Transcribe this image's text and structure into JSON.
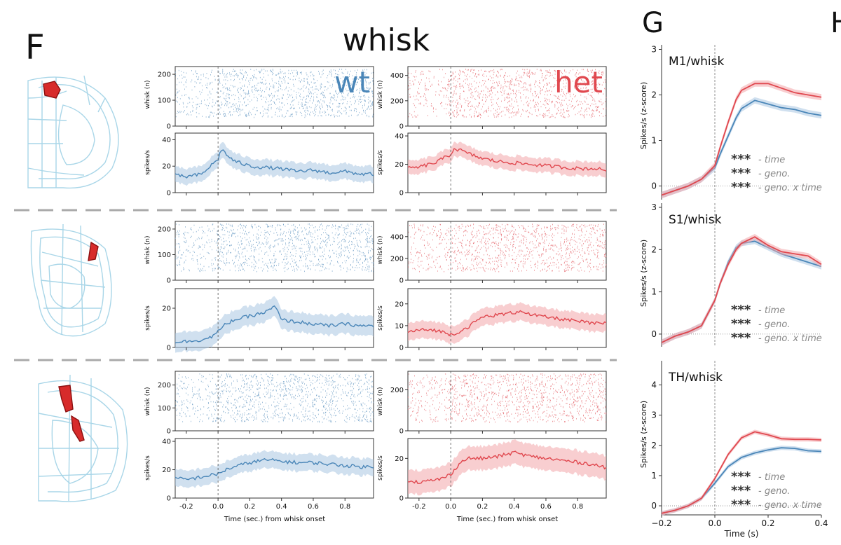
{
  "panel_labels": {
    "f": "F",
    "g": "G",
    "h": "H"
  },
  "section_title": "whisk",
  "genotypes": {
    "wt": {
      "label": "wt",
      "color": "#4a86b8",
      "light": "#a9c7e2"
    },
    "het": {
      "label": "het",
      "color": "#e0484f",
      "light": "#f2a6aa"
    }
  },
  "brain_colors": {
    "outline": "#a9d6e8",
    "region": "#d72b2b"
  },
  "axis_labels": {
    "raster_y": "whisk (n)",
    "psth_y": "spikes/s",
    "x": "Time (sec.) from whisk onset",
    "g_y": "Spikes/s (z-score)",
    "g_x": "Time (s)"
  },
  "significance": {
    "stars": "***",
    "labels": [
      "- time",
      "- geno.",
      "- geno. x time"
    ]
  },
  "chart_data": [
    {
      "type": "raster",
      "id": "F1 raster wt",
      "ylabel": "whisk (n)",
      "ylim": [
        0,
        230
      ],
      "yticks": [
        0,
        100,
        200
      ],
      "xlim": [
        -0.27,
        0.98
      ],
      "xticks": [
        -0.2,
        0.0,
        0.2,
        0.4,
        0.6,
        0.8
      ],
      "legend": "wt"
    },
    {
      "type": "raster",
      "id": "F1 raster het",
      "ylabel": "whisk (n)",
      "ylim": [
        0,
        470
      ],
      "yticks": [
        0,
        200,
        400
      ],
      "xlim": [
        -0.27,
        0.98
      ],
      "xticks": [
        -0.2,
        0.0,
        0.2,
        0.4,
        0.6,
        0.8
      ],
      "legend": "het"
    },
    {
      "type": "line",
      "id": "F1 psth wt",
      "ylabel": "spikes/s",
      "ylim": [
        0,
        45
      ],
      "yticks": [
        0,
        20,
        40
      ],
      "xlim": [
        -0.27,
        0.98
      ],
      "x": [
        -0.27,
        -0.2,
        -0.1,
        -0.05,
        0.0,
        0.02,
        0.06,
        0.1,
        0.2,
        0.3,
        0.4,
        0.5,
        0.6,
        0.7,
        0.8,
        0.9,
        0.98
      ],
      "y": [
        13,
        12,
        14,
        20,
        25,
        33,
        28,
        24,
        20,
        19,
        18,
        16,
        17,
        15,
        16,
        14,
        14
      ],
      "band": 6
    },
    {
      "type": "line",
      "id": "F1 psth het",
      "ylabel": "spikes/s",
      "ylim": [
        0,
        42
      ],
      "yticks": [
        0,
        20,
        40
      ],
      "xlim": [
        -0.27,
        0.98
      ],
      "x": [
        -0.27,
        -0.2,
        -0.1,
        -0.05,
        0.0,
        0.02,
        0.06,
        0.1,
        0.2,
        0.3,
        0.4,
        0.5,
        0.6,
        0.7,
        0.8,
        0.9,
        0.98
      ],
      "y": [
        17,
        18,
        21,
        24,
        27,
        31,
        30,
        28,
        24,
        22,
        21,
        20,
        19,
        18,
        17,
        17,
        16
      ],
      "band": 5
    },
    {
      "type": "raster",
      "id": "F2 raster wt",
      "ylabel": "whisk (n)",
      "ylim": [
        0,
        230
      ],
      "yticks": [
        0,
        100,
        200
      ],
      "xlim": [
        -0.27,
        0.98
      ],
      "xticks": [
        -0.2,
        0.0,
        0.2,
        0.4,
        0.6,
        0.8
      ]
    },
    {
      "type": "raster",
      "id": "F2 raster het",
      "ylabel": "whisk (n)",
      "ylim": [
        0,
        540
      ],
      "yticks": [
        0,
        200,
        400
      ],
      "xlim": [
        -0.27,
        0.98
      ],
      "xticks": [
        -0.2,
        0.0,
        0.2,
        0.4,
        0.6,
        0.8
      ]
    },
    {
      "type": "line",
      "id": "F2 psth wt",
      "ylabel": "spikes/s",
      "ylim": [
        0,
        30
      ],
      "yticks": [
        0,
        20
      ],
      "xlim": [
        -0.27,
        0.98
      ],
      "x": [
        -0.27,
        -0.2,
        -0.1,
        -0.05,
        0.0,
        0.05,
        0.1,
        0.2,
        0.3,
        0.36,
        0.4,
        0.5,
        0.6,
        0.7,
        0.8,
        0.9,
        0.98
      ],
      "y": [
        3,
        3,
        4,
        5,
        8,
        12,
        14,
        16,
        18,
        21,
        14,
        13,
        12,
        11,
        12,
        11,
        11
      ],
      "band": 5
    },
    {
      "type": "line",
      "id": "F2 psth het",
      "ylabel": "spikes/s",
      "ylim": [
        0,
        27
      ],
      "yticks": [
        0,
        10,
        20
      ],
      "xlim": [
        -0.27,
        0.98
      ],
      "x": [
        -0.27,
        -0.2,
        -0.1,
        -0.05,
        0.0,
        0.05,
        0.1,
        0.2,
        0.3,
        0.4,
        0.45,
        0.5,
        0.6,
        0.7,
        0.8,
        0.9,
        0.98
      ],
      "y": [
        7,
        8,
        8,
        7,
        6,
        7,
        9,
        14,
        15,
        16,
        17,
        15,
        14,
        13,
        12,
        11,
        11
      ],
      "band": 4
    },
    {
      "type": "raster",
      "id": "F3 raster wt",
      "ylabel": "whisk (n)",
      "ylim": [
        0,
        260
      ],
      "yticks": [
        0,
        100,
        200
      ],
      "xlim": [
        -0.27,
        0.98
      ],
      "xticks": [
        -0.2,
        0.0,
        0.2,
        0.4,
        0.6,
        0.8
      ]
    },
    {
      "type": "raster",
      "id": "F3 raster het",
      "ylabel": "whisk (n)",
      "ylim": [
        0,
        290
      ],
      "yticks": [
        0,
        200
      ],
      "xlim": [
        -0.27,
        0.98
      ],
      "xticks": [
        -0.2,
        0.0,
        0.2,
        0.4,
        0.6,
        0.8
      ]
    },
    {
      "type": "line",
      "id": "F3 psth wt",
      "ylabel": "spikes/s",
      "ylim": [
        0,
        42
      ],
      "yticks": [
        0,
        20,
        40
      ],
      "xlim": [
        -0.27,
        0.98
      ],
      "xlabel": "Time (sec.) from whisk onset",
      "xticks": [
        -0.2,
        0.0,
        0.2,
        0.4,
        0.6,
        0.8
      ],
      "x": [
        -0.27,
        -0.2,
        -0.1,
        -0.05,
        0.0,
        0.05,
        0.1,
        0.2,
        0.3,
        0.4,
        0.5,
        0.6,
        0.7,
        0.8,
        0.9,
        0.98
      ],
      "y": [
        14,
        13,
        15,
        16,
        17,
        20,
        22,
        25,
        27,
        26,
        25,
        25,
        24,
        23,
        22,
        22
      ],
      "band": 6
    },
    {
      "type": "line",
      "id": "F3 psth het",
      "ylabel": "spikes/s",
      "ylim": [
        0,
        30
      ],
      "yticks": [
        0,
        20
      ],
      "xlim": [
        -0.27,
        0.98
      ],
      "xlabel": "Time (sec.) from whisk onset",
      "xticks": [
        -0.2,
        0.0,
        0.2,
        0.4,
        0.6,
        0.8
      ],
      "x": [
        -0.27,
        -0.2,
        -0.1,
        -0.05,
        0.0,
        0.05,
        0.1,
        0.2,
        0.3,
        0.4,
        0.5,
        0.6,
        0.7,
        0.8,
        0.9,
        0.98
      ],
      "y": [
        9,
        8,
        9,
        10,
        12,
        17,
        20,
        20,
        21,
        23,
        21,
        20,
        19,
        18,
        17,
        15
      ],
      "band": 6
    },
    {
      "type": "line",
      "id": "G M1",
      "title": "M1/whisk",
      "ylabel": "Spikes/s (z-score)",
      "ylim": [
        -0.3,
        3.1
      ],
      "yticks": [
        0,
        1,
        2,
        3
      ],
      "xlim": [
        -0.2,
        0.4
      ],
      "series": [
        {
          "name": "wt",
          "x": [
            -0.2,
            -0.15,
            -0.1,
            -0.05,
            0.0,
            0.02,
            0.05,
            0.08,
            0.1,
            0.15,
            0.2,
            0.25,
            0.3,
            0.35,
            0.4
          ],
          "y": [
            -0.2,
            -0.1,
            0.0,
            0.15,
            0.4,
            0.7,
            1.1,
            1.5,
            1.7,
            1.88,
            1.8,
            1.72,
            1.68,
            1.6,
            1.55
          ]
        },
        {
          "name": "het",
          "x": [
            -0.2,
            -0.15,
            -0.1,
            -0.05,
            0.0,
            0.02,
            0.05,
            0.08,
            0.1,
            0.15,
            0.2,
            0.25,
            0.3,
            0.35,
            0.4
          ],
          "y": [
            -0.2,
            -0.1,
            0.0,
            0.15,
            0.45,
            0.85,
            1.4,
            1.9,
            2.1,
            2.25,
            2.25,
            2.15,
            2.05,
            2.0,
            1.95
          ]
        }
      ]
    },
    {
      "type": "line",
      "id": "G S1",
      "title": "S1/whisk",
      "ylabel": "Spikes/s (z-score)",
      "ylim": [
        -0.3,
        3.1
      ],
      "yticks": [
        0,
        1,
        2,
        3
      ],
      "xlim": [
        -0.2,
        0.4
      ],
      "series": [
        {
          "name": "wt",
          "x": [
            -0.2,
            -0.15,
            -0.1,
            -0.05,
            0.0,
            0.02,
            0.05,
            0.08,
            0.1,
            0.15,
            0.2,
            0.25,
            0.3,
            0.35,
            0.4
          ],
          "y": [
            -0.2,
            -0.05,
            0.05,
            0.2,
            0.8,
            1.2,
            1.7,
            2.05,
            2.15,
            2.2,
            2.05,
            1.9,
            1.8,
            1.7,
            1.6
          ]
        },
        {
          "name": "het",
          "x": [
            -0.2,
            -0.15,
            -0.1,
            -0.05,
            0.0,
            0.02,
            0.05,
            0.08,
            0.1,
            0.15,
            0.2,
            0.25,
            0.3,
            0.35,
            0.4
          ],
          "y": [
            -0.2,
            -0.05,
            0.05,
            0.2,
            0.8,
            1.2,
            1.65,
            2.0,
            2.15,
            2.3,
            2.1,
            1.95,
            1.9,
            1.85,
            1.65
          ]
        }
      ]
    },
    {
      "type": "line",
      "id": "G TH",
      "title": "TH/whisk",
      "ylabel": "Spikes/s (z-score)",
      "xlabel": "Time (s)",
      "ylim": [
        -0.3,
        4.8
      ],
      "yticks": [
        0,
        1,
        2,
        3,
        4
      ],
      "xlim": [
        -0.2,
        0.4
      ],
      "xticks": [
        -0.2,
        0.0,
        0.2,
        0.4
      ],
      "series": [
        {
          "name": "wt",
          "x": [
            -0.2,
            -0.15,
            -0.1,
            -0.05,
            0.0,
            0.05,
            0.1,
            0.15,
            0.2,
            0.25,
            0.3,
            0.35,
            0.4
          ],
          "y": [
            -0.25,
            -0.15,
            0.0,
            0.25,
            0.75,
            1.3,
            1.6,
            1.75,
            1.85,
            1.92,
            1.9,
            1.82,
            1.8
          ]
        },
        {
          "name": "het",
          "x": [
            -0.2,
            -0.15,
            -0.1,
            -0.05,
            0.0,
            0.05,
            0.1,
            0.15,
            0.2,
            0.25,
            0.3,
            0.35,
            0.4
          ],
          "y": [
            -0.25,
            -0.15,
            0.0,
            0.25,
            0.9,
            1.7,
            2.25,
            2.45,
            2.35,
            2.22,
            2.2,
            2.2,
            2.18
          ]
        }
      ]
    }
  ]
}
